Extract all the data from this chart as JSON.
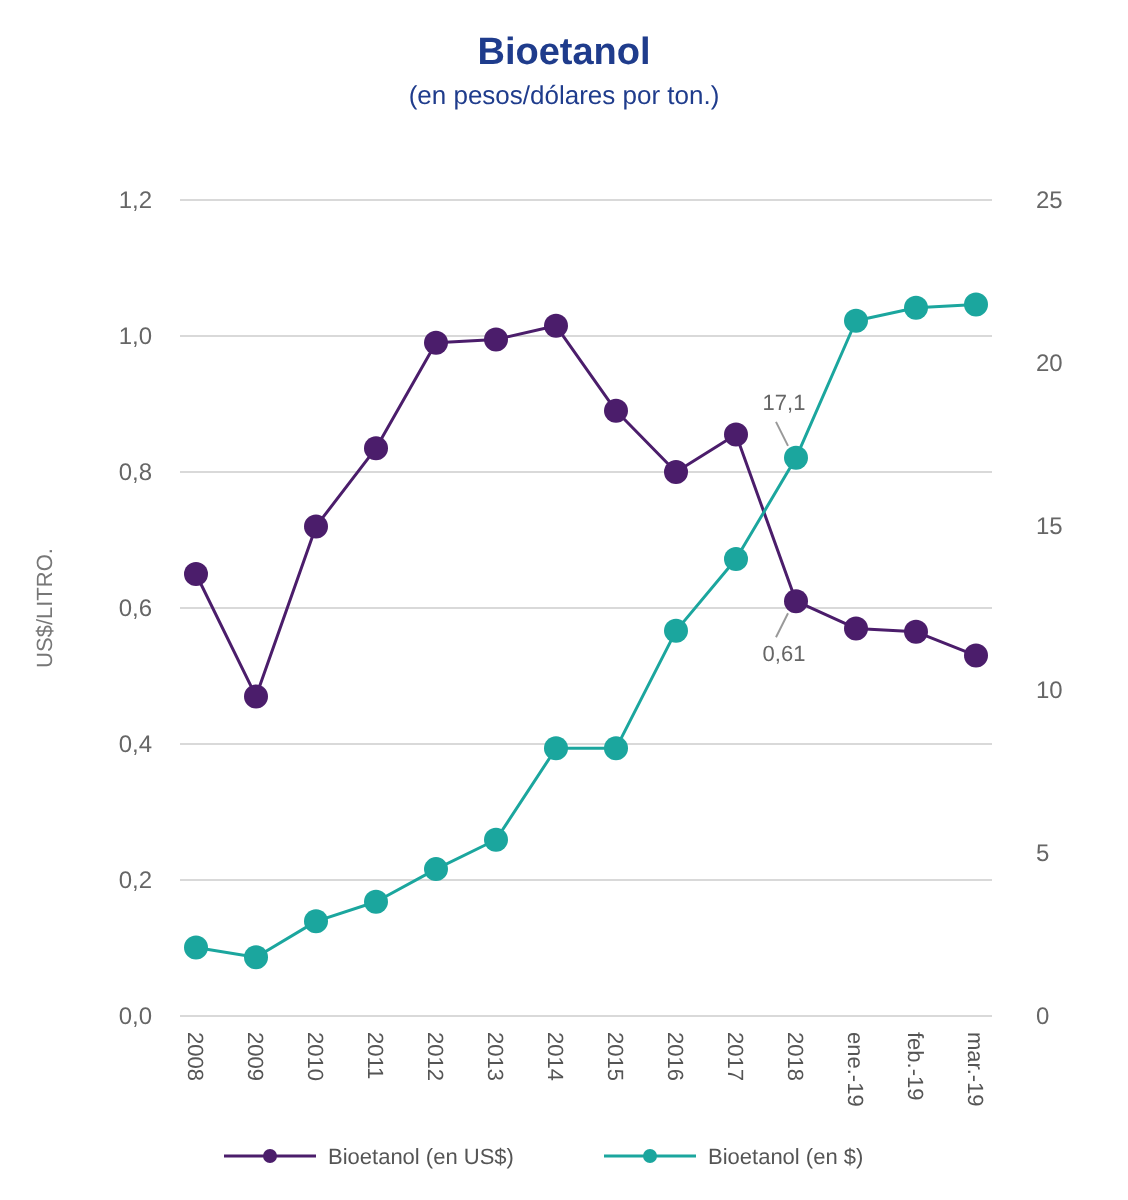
{
  "chart_data": {
    "type": "line",
    "title": "Bioetanol",
    "subtitle": "(en pesos/dólares por ton.)",
    "ylabel": "US$/LITRO.",
    "categories": [
      "2008",
      "2009",
      "2010",
      "2011",
      "2012",
      "2013",
      "2014",
      "2015",
      "2016",
      "2017",
      "2018",
      "ene.-19",
      "feb.-19",
      "mar.-19"
    ],
    "series": [
      {
        "name": "Bioetanol (en US$)",
        "color": "#4b1d6b",
        "values": [
          0.65,
          0.47,
          0.72,
          0.835,
          0.99,
          0.995,
          1.015,
          0.89,
          0.8,
          0.855,
          0.61,
          0.57,
          0.565,
          0.53
        ],
        "value_labels": [
          null,
          null,
          null,
          null,
          null,
          null,
          null,
          null,
          null,
          null,
          "0,61",
          null,
          null,
          null
        ]
      },
      {
        "name": "Bioetanol (en $)",
        "color": "#1ba69e",
        "axis": "y2",
        "values": [
          2.1,
          1.8,
          2.9,
          3.5,
          4.5,
          5.4,
          8.2,
          8.2,
          11.8,
          14.0,
          17.1,
          21.3,
          21.7,
          21.8
        ],
        "value_labels": [
          null,
          null,
          null,
          null,
          null,
          null,
          null,
          null,
          null,
          null,
          "17,1",
          null,
          null,
          null
        ]
      }
    ],
    "ylim": [
      0,
      1.2
    ],
    "yticks": [
      {
        "value": 0,
        "label": "0,0"
      },
      {
        "value": 0.2,
        "label": "0,2"
      },
      {
        "value": 0.4,
        "label": "0,4"
      },
      {
        "value": 0.6,
        "label": "0,6"
      },
      {
        "value": 0.8,
        "label": "0,8"
      },
      {
        "value": 1.0,
        "label": "1,0"
      },
      {
        "value": 1.2,
        "label": "1,2"
      }
    ],
    "y2lim": [
      0,
      25
    ],
    "y2ticks": [
      0,
      5,
      10,
      15,
      20,
      25
    ],
    "grid": "y",
    "legend": "bottom",
    "marker": "circle",
    "line_style": "solid"
  }
}
